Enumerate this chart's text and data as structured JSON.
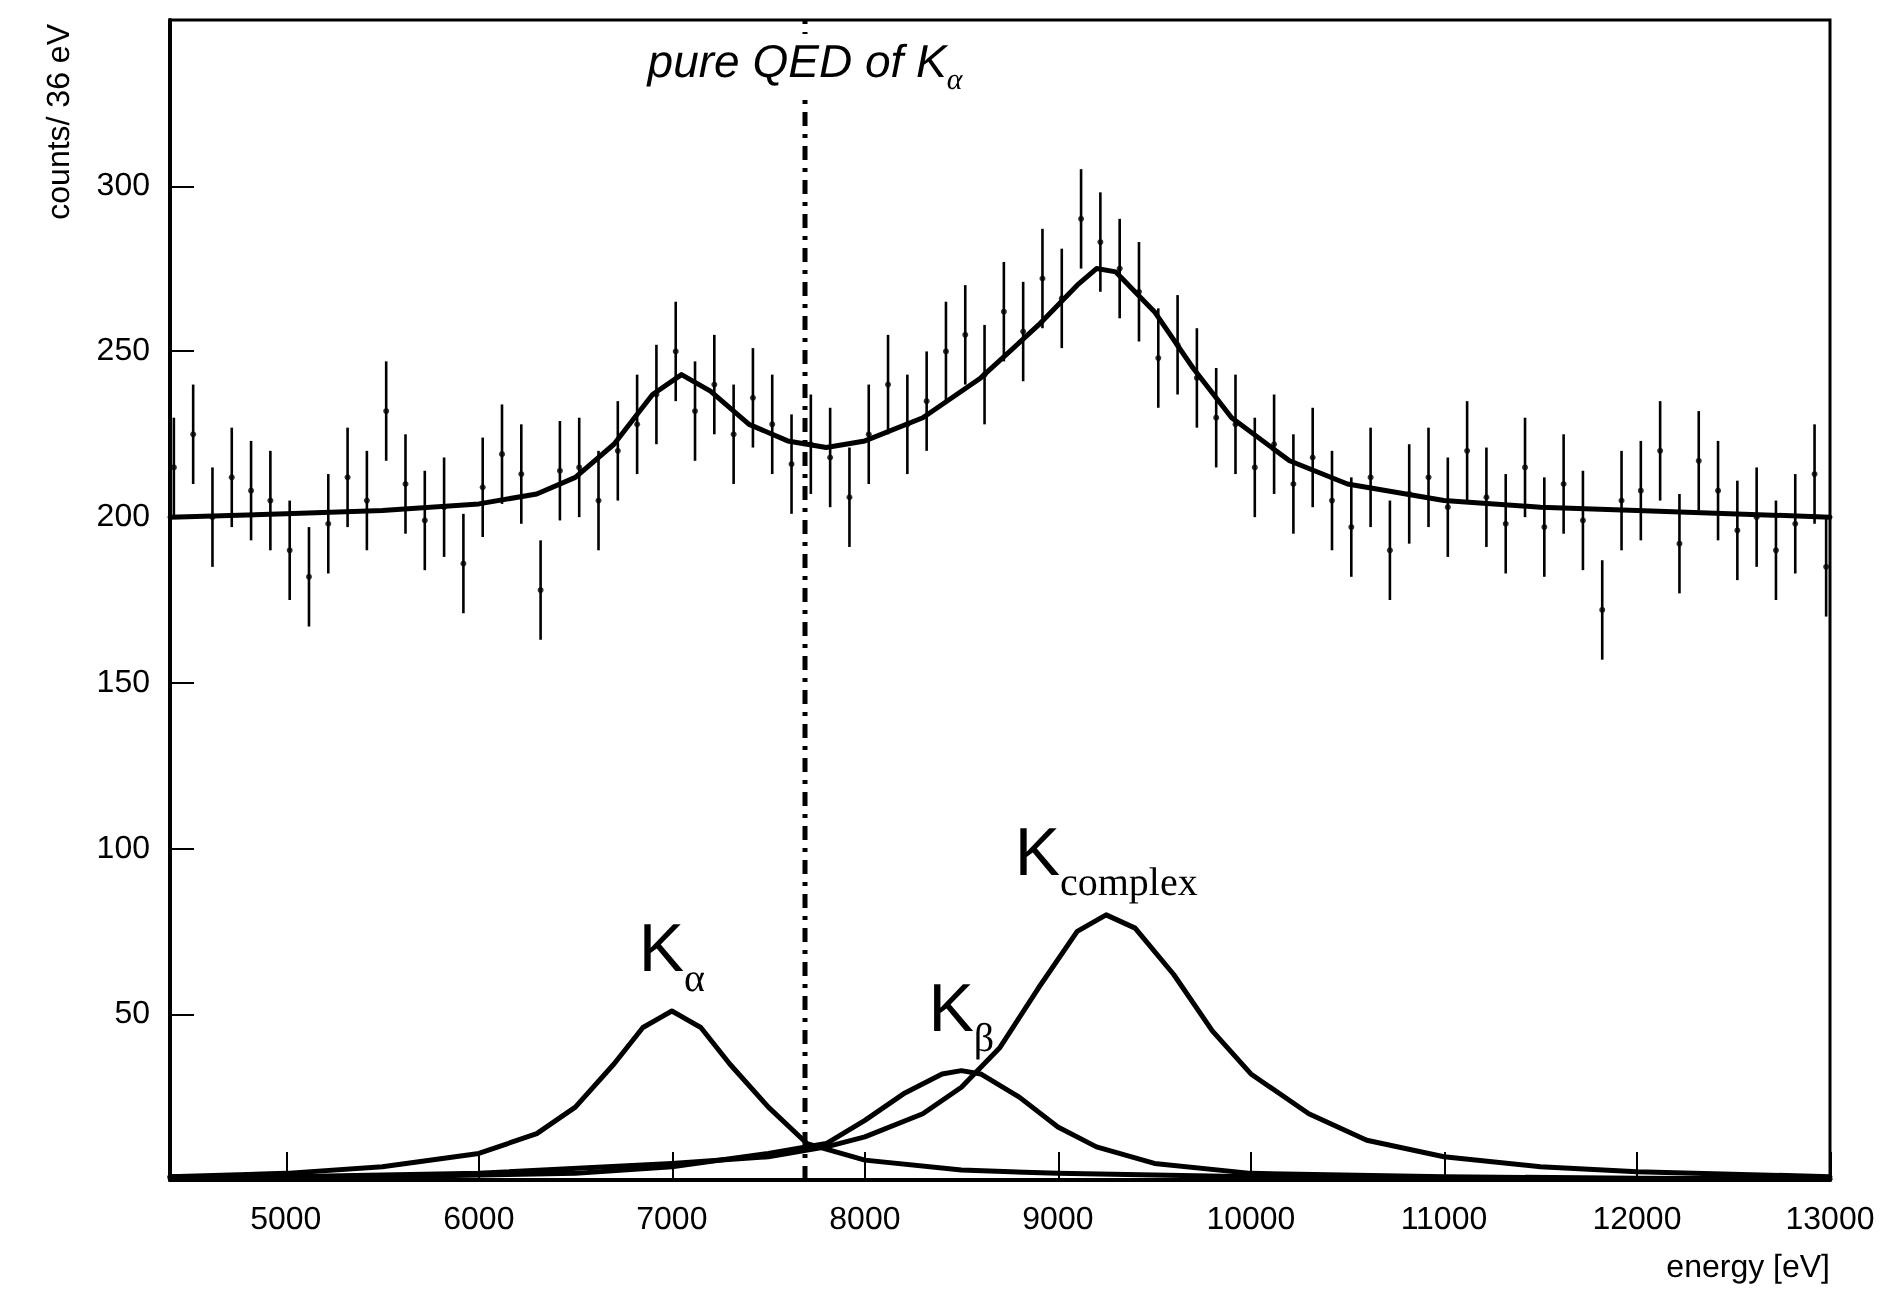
{
  "chart_data": {
    "type": "scatter",
    "xlabel": "energy [eV]",
    "ylabel": "counts/ 36 eV",
    "xlim": [
      4400,
      13000
    ],
    "xticks": [
      5000,
      6000,
      7000,
      8000,
      9000,
      10000,
      11000,
      12000,
      13000
    ],
    "ylim": [
      0,
      350
    ],
    "yticks": [
      50,
      100,
      150,
      200,
      250,
      300
    ],
    "grid": false,
    "legend": false,
    "series": [
      {
        "color": "#000000",
        "x": [
          4420,
          4520,
          4620,
          4720,
          4820,
          4920,
          5020,
          5120,
          5220,
          5320,
          5420,
          5520,
          5620,
          5720,
          5820,
          5920,
          6020,
          6120,
          6220,
          6320,
          6420,
          6520,
          6620,
          6720,
          6820,
          6920,
          7020,
          7120,
          7220,
          7320,
          7420,
          7520,
          7620,
          7720,
          7820,
          7920,
          8020,
          8120,
          8220,
          8320,
          8420,
          8520,
          8620,
          8720,
          8820,
          8920,
          9020,
          9120,
          9220,
          9320,
          9420,
          9520,
          9620,
          9720,
          9820,
          9920,
          10020,
          10120,
          10220,
          10320,
          10420,
          10520,
          10620,
          10720,
          10820,
          10920,
          11020,
          11120,
          11220,
          11320,
          11420,
          11520,
          11620,
          11720,
          11820,
          11920,
          12020,
          12120,
          12220,
          12320,
          12420,
          12520,
          12620,
          12720,
          12820,
          12920,
          12980
        ],
        "values": [
          215,
          225,
          200,
          212,
          208,
          205,
          190,
          182,
          198,
          212,
          205,
          232,
          210,
          199,
          203,
          186,
          209,
          219,
          213,
          178,
          214,
          215,
          205,
          220,
          228,
          237,
          250,
          232,
          240,
          225,
          236,
          228,
          216,
          222,
          218,
          206,
          225,
          240,
          228,
          235,
          250,
          255,
          243,
          262,
          256,
          272,
          266,
          290,
          283,
          275,
          268,
          248,
          252,
          242,
          230,
          228,
          215,
          222,
          210,
          218,
          205,
          197,
          212,
          190,
          207,
          212,
          203,
          220,
          206,
          198,
          215,
          197,
          210,
          199,
          172,
          205,
          208,
          220,
          192,
          217,
          208,
          196,
          200,
          190,
          198,
          213,
          185
        ],
        "errors": [
          15,
          15,
          15,
          15,
          15,
          15,
          15,
          15,
          15,
          15,
          15,
          15,
          15,
          15,
          15,
          15,
          15,
          15,
          15,
          15,
          15,
          15,
          15,
          15,
          15,
          15,
          15,
          15,
          15,
          15,
          15,
          15,
          15,
          15,
          15,
          15,
          15,
          15,
          15,
          15,
          15,
          15,
          15,
          15,
          15,
          15,
          15,
          15,
          15,
          15,
          15,
          15,
          15,
          15,
          15,
          15,
          15,
          15,
          15,
          15,
          15,
          15,
          15,
          15,
          15,
          15,
          15,
          15,
          15,
          15,
          15,
          15,
          15,
          15,
          15,
          15,
          15,
          15,
          15,
          15,
          15,
          15,
          15,
          15,
          15,
          15,
          15
        ]
      },
      {
        "type": "line",
        "color": "#000000",
        "x": [
          4400,
          5000,
          5500,
          6000,
          6300,
          6500,
          6700,
          6900,
          7050,
          7200,
          7400,
          7600,
          7800,
          8000,
          8300,
          8600,
          8900,
          9100,
          9200,
          9300,
          9500,
          9700,
          9900,
          10200,
          10500,
          11000,
          11500,
          12000,
          13000
        ],
        "values": [
          200,
          201,
          202,
          204,
          207,
          212,
          222,
          237,
          243,
          238,
          228,
          223,
          221,
          223,
          230,
          242,
          258,
          270,
          275,
          274,
          262,
          245,
          230,
          217,
          210,
          205,
          203,
          202,
          200
        ]
      },
      {
        "type": "line",
        "name": "K$_{α}$",
        "color": "#000000",
        "x": [
          4400,
          5000,
          5500,
          6000,
          6300,
          6500,
          6700,
          6850,
          7000,
          7150,
          7300,
          7500,
          7700,
          8000,
          8500,
          9000,
          10000,
          11000,
          12000,
          13000
        ],
        "values": [
          1,
          2,
          4,
          8,
          14,
          22,
          35,
          46,
          51,
          46,
          35,
          22,
          11,
          6,
          3,
          2,
          1,
          0.5,
          0.3,
          0.2
        ]
      },
      {
        "type": "line",
        "name": "K$_{β}$",
        "color": "#000000",
        "x": [
          4400,
          5500,
          6500,
          7000,
          7500,
          7800,
          8000,
          8200,
          8400,
          8500,
          8600,
          8800,
          9000,
          9200,
          9500,
          10000,
          11000,
          12000,
          13000
        ],
        "values": [
          0.5,
          1,
          2,
          4,
          8,
          11,
          18,
          26,
          32,
          33,
          32,
          25,
          16,
          10,
          5,
          2,
          1,
          0.5,
          0.3
        ]
      },
      {
        "type": "line",
        "name": "K$_{complex}$",
        "color": "#000000",
        "x": [
          4400,
          5000,
          6000,
          7000,
          7500,
          7800,
          8000,
          8300,
          8500,
          8700,
          8900,
          9100,
          9250,
          9400,
          9600,
          9800,
          10000,
          10300,
          10600,
          11000,
          11500,
          12000,
          13000
        ],
        "values": [
          1,
          1,
          2,
          5,
          7,
          10,
          13,
          20,
          28,
          40,
          58,
          75,
          80,
          76,
          62,
          45,
          32,
          20,
          12,
          7,
          4,
          2.5,
          1
        ]
      }
    ],
    "ref_lines": [
      {
        "axis": "x",
        "value": 7690,
        "label": "pure QED of K$_{α}$",
        "line_style": "dashed",
        "color": "#000000"
      }
    ]
  }
}
